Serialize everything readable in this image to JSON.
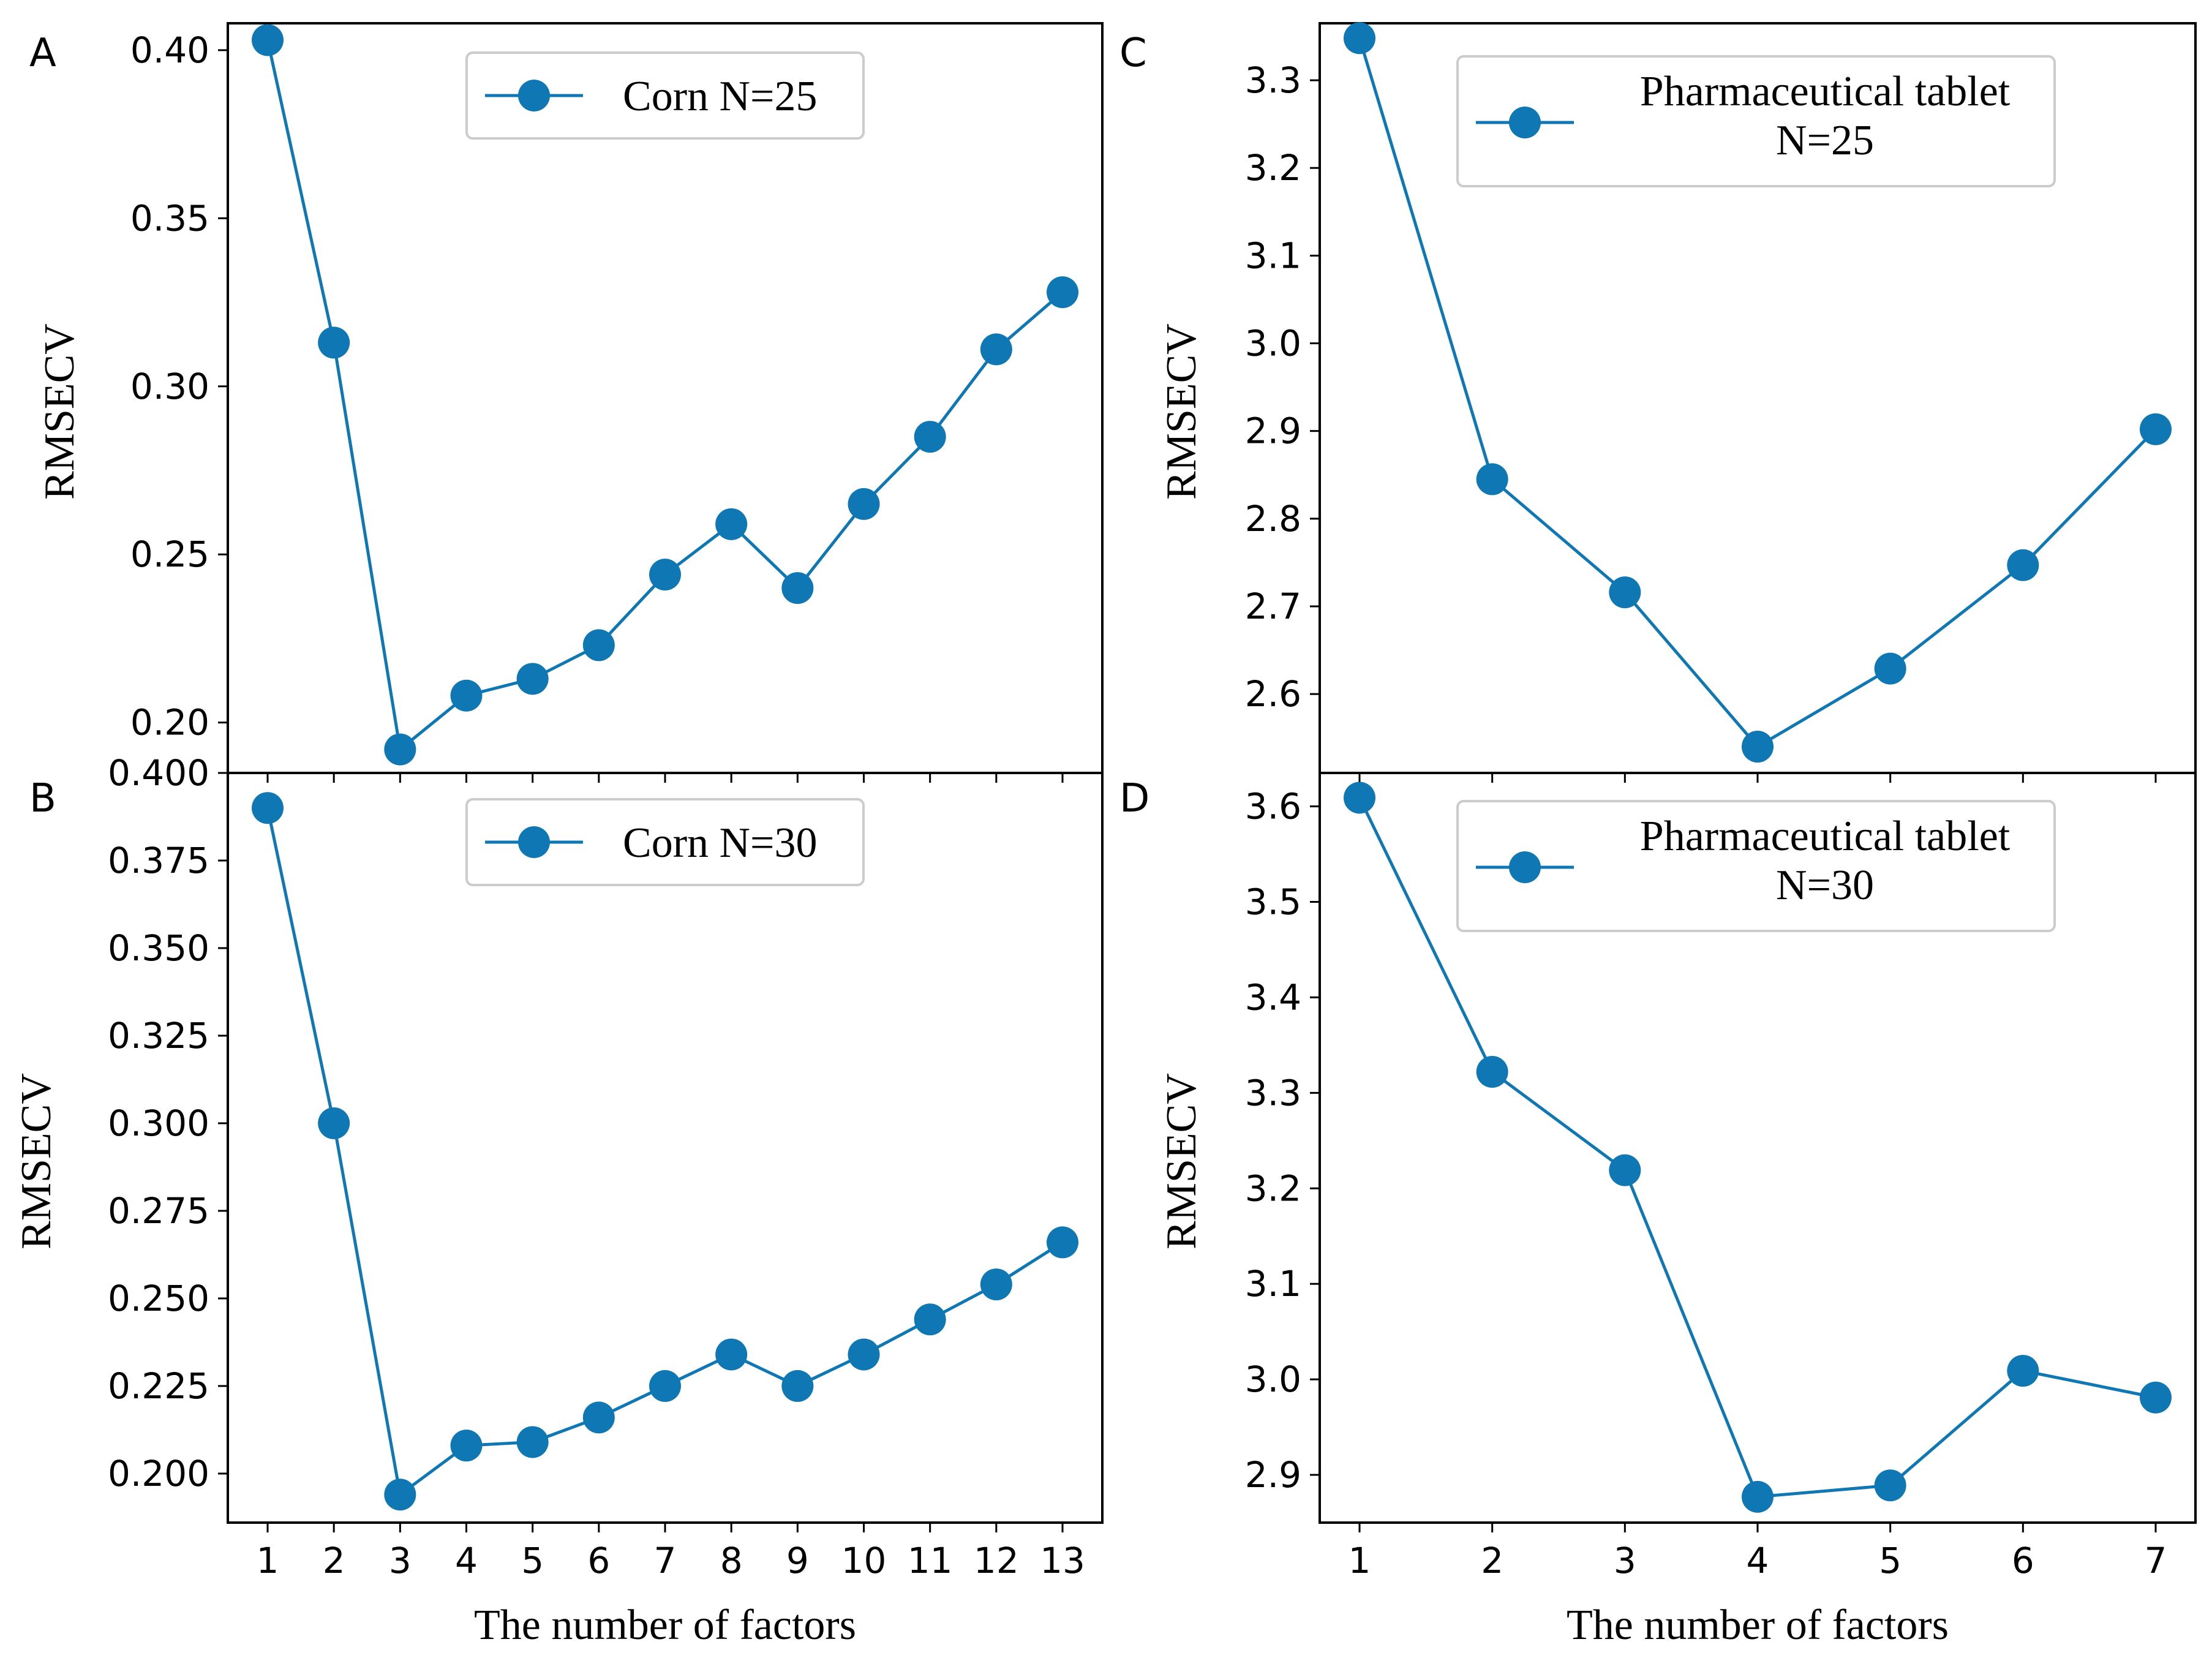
{
  "figure": {
    "series_color": "#0e77b4",
    "xlabel": "The number of factors",
    "ylabel": "RMSECV"
  },
  "chart_data": [
    {
      "panel": "A",
      "type": "line",
      "legend": [
        "Corn N=25"
      ],
      "x": [
        1,
        2,
        3,
        4,
        5,
        6,
        7,
        8,
        9,
        10,
        11,
        12,
        13
      ],
      "values": [
        0.403,
        0.313,
        0.192,
        0.208,
        0.213,
        0.223,
        0.244,
        0.259,
        0.24,
        0.265,
        0.285,
        0.311,
        0.328
      ],
      "ylim": [
        0.185,
        0.408
      ],
      "yticks": [
        "0.20",
        "0.25",
        "0.30",
        "0.35",
        "0.40"
      ],
      "xticks": [
        "1",
        "2",
        "3",
        "4",
        "5",
        "6",
        "7",
        "8",
        "9",
        "10",
        "11",
        "12",
        "13"
      ],
      "xlabel": "",
      "ylabel": "RMSECV",
      "legend_position": "top-center"
    },
    {
      "panel": "B",
      "type": "line",
      "legend": [
        "Corn N=30"
      ],
      "x": [
        1,
        2,
        3,
        4,
        5,
        6,
        7,
        8,
        9,
        10,
        11,
        12,
        13
      ],
      "values": [
        0.39,
        0.3,
        0.194,
        0.208,
        0.209,
        0.216,
        0.225,
        0.234,
        0.225,
        0.234,
        0.244,
        0.254,
        0.266
      ],
      "ylim": [
        0.186,
        0.4
      ],
      "yticks": [
        "0.200",
        "0.225",
        "0.250",
        "0.275",
        "0.300",
        "0.325",
        "0.350",
        "0.375",
        "0.400"
      ],
      "xticks": [
        "1",
        "2",
        "3",
        "4",
        "5",
        "6",
        "7",
        "8",
        "9",
        "10",
        "11",
        "12",
        "13"
      ],
      "xlabel": "The number of factors",
      "ylabel": "RMSECV",
      "legend_position": "top-center"
    },
    {
      "panel": "C",
      "type": "line",
      "legend": [
        "Pharmaceutical tablet",
        "N=25"
      ],
      "x": [
        1,
        2,
        3,
        4,
        5,
        6,
        7
      ],
      "values": [
        3.348,
        2.845,
        2.716,
        2.54,
        2.629,
        2.747,
        2.902
      ],
      "ylim": [
        2.51,
        3.365
      ],
      "yticks": [
        "2.6",
        "2.7",
        "2.8",
        "2.9",
        "3.0",
        "3.1",
        "3.2",
        "3.3"
      ],
      "xticks": [
        "1",
        "2",
        "3",
        "4",
        "5",
        "6",
        "7"
      ],
      "xlabel": "",
      "ylabel": "RMSECV",
      "legend_position": "top-center"
    },
    {
      "panel": "D",
      "type": "line",
      "legend": [
        "Pharmaceutical tablet",
        "N=30"
      ],
      "x": [
        1,
        2,
        3,
        4,
        5,
        6,
        7
      ],
      "values": [
        3.609,
        3.322,
        3.219,
        2.877,
        2.889,
        3.009,
        2.981
      ],
      "ylim": [
        2.85,
        3.635
      ],
      "yticks": [
        "2.9",
        "3.0",
        "3.1",
        "3.2",
        "3.3",
        "3.4",
        "3.5",
        "3.6"
      ],
      "xticks": [
        "1",
        "2",
        "3",
        "4",
        "5",
        "6",
        "7"
      ],
      "xlabel": "The number of factors",
      "ylabel": "RMSECV",
      "legend_position": "top-center"
    }
  ]
}
